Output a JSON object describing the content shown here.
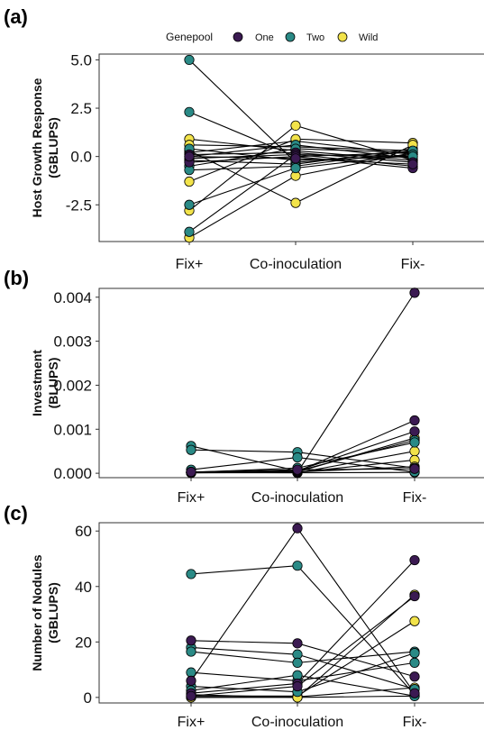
{
  "colors": {
    "One": "#3b1a52",
    "Two": "#2a8a86",
    "Wild": "#f2e34a",
    "line": "#000000"
  },
  "legend": {
    "title": "Genepool",
    "items": [
      "One",
      "Two",
      "Wild"
    ]
  },
  "chart_data": [
    {
      "type": "line",
      "panel": "(a)",
      "title": "",
      "ylabel": [
        "Host Growth Response",
        "(GBLUPS)"
      ],
      "categories": [
        "Fix+",
        "Co-inoculation",
        "Fix-"
      ],
      "ylim": [
        -4.4,
        5.3
      ],
      "yticks": [
        5.0,
        2.5,
        0.0,
        -2.5
      ],
      "ytick_labels": [
        "5.0",
        "2.5",
        "0.0",
        "-2.5"
      ],
      "grid": false,
      "lines": [
        {
          "genepool": "Two",
          "values": [
            5.0,
            -0.3,
            0.1
          ]
        },
        {
          "genepool": "Two",
          "values": [
            2.3,
            0.0,
            0.2
          ]
        },
        {
          "genepool": "Wild",
          "values": [
            0.9,
            0.3,
            -0.2
          ]
        },
        {
          "genepool": "Wild",
          "values": [
            0.6,
            0.5,
            0.3
          ]
        },
        {
          "genepool": "Two",
          "values": [
            0.4,
            -0.2,
            0.0
          ]
        },
        {
          "genepool": "Wild",
          "values": [
            0.2,
            0.8,
            0.1
          ]
        },
        {
          "genepool": "One",
          "values": [
            0.1,
            0.2,
            -0.3
          ]
        },
        {
          "genepool": "Two",
          "values": [
            0.0,
            0.6,
            -0.1
          ]
        },
        {
          "genepool": "One",
          "values": [
            -0.1,
            0.1,
            -0.5
          ]
        },
        {
          "genepool": "Wild",
          "values": [
            -0.2,
            -0.4,
            0.4
          ]
        },
        {
          "genepool": "One",
          "values": [
            -0.3,
            0.0,
            -0.6
          ]
        },
        {
          "genepool": "Two",
          "values": [
            -0.5,
            0.4,
            0.2
          ]
        },
        {
          "genepool": "Two",
          "values": [
            -0.7,
            -0.5,
            0.3
          ]
        },
        {
          "genepool": "Wild",
          "values": [
            -1.3,
            0.9,
            0.7
          ]
        },
        {
          "genepool": "Two",
          "values": [
            -2.5,
            -0.6,
            0.1
          ]
        },
        {
          "genepool": "Wild",
          "values": [
            -2.8,
            1.6,
            -0.2
          ]
        },
        {
          "genepool": "Two",
          "values": [
            -3.9,
            0.1,
            0.0
          ]
        },
        {
          "genepool": "Wild",
          "values": [
            -4.2,
            -1.0,
            0.2
          ]
        },
        {
          "genepool": "One",
          "values": [
            0.0,
            -0.1,
            -0.4
          ]
        },
        {
          "genepool": "Wild",
          "values": [
            0.3,
            -2.4,
            0.6
          ]
        }
      ]
    },
    {
      "type": "line",
      "panel": "(b)",
      "title": "",
      "ylabel": [
        "Investment",
        "(BLUPS)"
      ],
      "categories": [
        "Fix+",
        "Co-inoculation",
        "Fix-"
      ],
      "ylim": [
        -0.0001,
        0.0042
      ],
      "yticks": [
        0.004,
        0.003,
        0.002,
        0.001,
        0.0
      ],
      "ytick_labels": [
        "0.004",
        "0.003",
        "0.002",
        "0.001",
        "0.000"
      ],
      "grid": false,
      "lines": [
        {
          "genepool": "Two",
          "values": [
            0.00062,
            5e-05,
            0.00075
          ]
        },
        {
          "genepool": "Two",
          "values": [
            0.00053,
            0.00048,
            0.00012
          ]
        },
        {
          "genepool": "Two",
          "values": [
            8e-05,
            0.00036,
            3e-05
          ]
        },
        {
          "genepool": "One",
          "values": [
            3e-05,
            2e-05,
            0.0041
          ]
        },
        {
          "genepool": "One",
          "values": [
            2e-05,
            4e-05,
            0.0012
          ]
        },
        {
          "genepool": "One",
          "values": [
            1e-05,
            6e-05,
            0.00095
          ]
        },
        {
          "genepool": "Two",
          "values": [
            2e-05,
            0.00012,
            0.0007
          ]
        },
        {
          "genepool": "Wild",
          "values": [
            1e-05,
            3e-05,
            0.0008
          ]
        },
        {
          "genepool": "Wild",
          "values": [
            2e-05,
            1e-05,
            0.0005
          ]
        },
        {
          "genepool": "Wild",
          "values": [
            1e-05,
            2e-05,
            0.0003
          ]
        },
        {
          "genepool": "Wild",
          "values": [
            2e-05,
            3e-05,
            0.00015
          ]
        },
        {
          "genepool": "One",
          "values": [
            3e-05,
            8e-05,
            0.0001
          ]
        },
        {
          "genepool": "Wild",
          "values": [
            1e-05,
            1e-05,
            2e-05
          ]
        }
      ]
    },
    {
      "type": "line",
      "panel": "(c)",
      "title": "",
      "ylabel": [
        "Number of Nodules",
        "(GBLUPS)"
      ],
      "categories": [
        "Fix+",
        "Co-inoculation",
        "Fix-"
      ],
      "ylim": [
        -2,
        63
      ],
      "yticks": [
        60,
        40,
        20,
        0
      ],
      "ytick_labels": [
        "60",
        "40",
        "20",
        "0"
      ],
      "grid": false,
      "lines": [
        {
          "genepool": "Two",
          "values": [
            44.5,
            47.5,
            1.0
          ]
        },
        {
          "genepool": "One",
          "values": [
            20.5,
            19.5,
            7.5
          ]
        },
        {
          "genepool": "Two",
          "values": [
            18.0,
            15.5,
            3.0
          ]
        },
        {
          "genepool": "Two",
          "values": [
            16.5,
            12.5,
            16.5
          ]
        },
        {
          "genepool": "Two",
          "values": [
            9.0,
            6.0,
            12.5
          ]
        },
        {
          "genepool": "One",
          "values": [
            6.0,
            61.0,
            1.5
          ]
        },
        {
          "genepool": "Two",
          "values": [
            4.0,
            2.0,
            16.0
          ]
        },
        {
          "genepool": "Two",
          "values": [
            2.5,
            8.0,
            0.5
          ]
        },
        {
          "genepool": "One",
          "values": [
            1.5,
            5.0,
            49.5
          ]
        },
        {
          "genepool": "Wild",
          "values": [
            1.0,
            0.0,
            37.0
          ]
        },
        {
          "genepool": "Wild",
          "values": [
            0.5,
            0.5,
            27.5
          ]
        },
        {
          "genepool": "Wild",
          "values": [
            0.0,
            0.2,
            3.5
          ]
        },
        {
          "genepool": "Wild",
          "values": [
            0.0,
            0.0,
            0.5
          ]
        },
        {
          "genepool": "One",
          "values": [
            0.5,
            4.0,
            36.5
          ]
        }
      ]
    }
  ]
}
